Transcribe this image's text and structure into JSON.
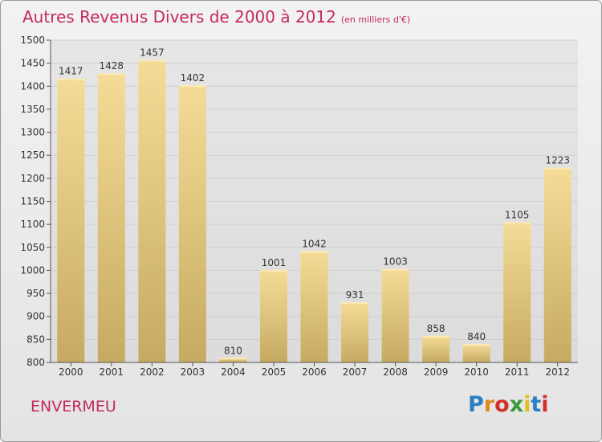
{
  "title": "Autres Revenus Divers de 2000 à 2012",
  "subtitle": "(en milliers d'€)",
  "town": "ENVERMEU",
  "logo": {
    "text": "Proxiti",
    "colors": [
      "#2a7fc4",
      "#e08a1a",
      "#d0322a",
      "#3a9a3a",
      "#e0c01a",
      "#2a7fc4",
      "#d0322a"
    ]
  },
  "colors": {
    "accent": "#c42a5a",
    "bar_top": "#f5dc96",
    "bar_bottom": "#c6aa62",
    "grid": "#cfcfcf"
  },
  "chart_data": {
    "type": "bar",
    "categories": [
      "2000",
      "2001",
      "2002",
      "2003",
      "2004",
      "2005",
      "2006",
      "2007",
      "2008",
      "2009",
      "2010",
      "2011",
      "2012"
    ],
    "values": [
      1417,
      1428,
      1457,
      1402,
      810,
      1001,
      1042,
      931,
      1003,
      858,
      840,
      1105,
      1223
    ],
    "ylim": [
      800,
      1500
    ],
    "yticks": [
      800,
      850,
      900,
      950,
      1000,
      1050,
      1100,
      1150,
      1200,
      1250,
      1300,
      1350,
      1400,
      1450,
      1500
    ],
    "grid": true
  }
}
